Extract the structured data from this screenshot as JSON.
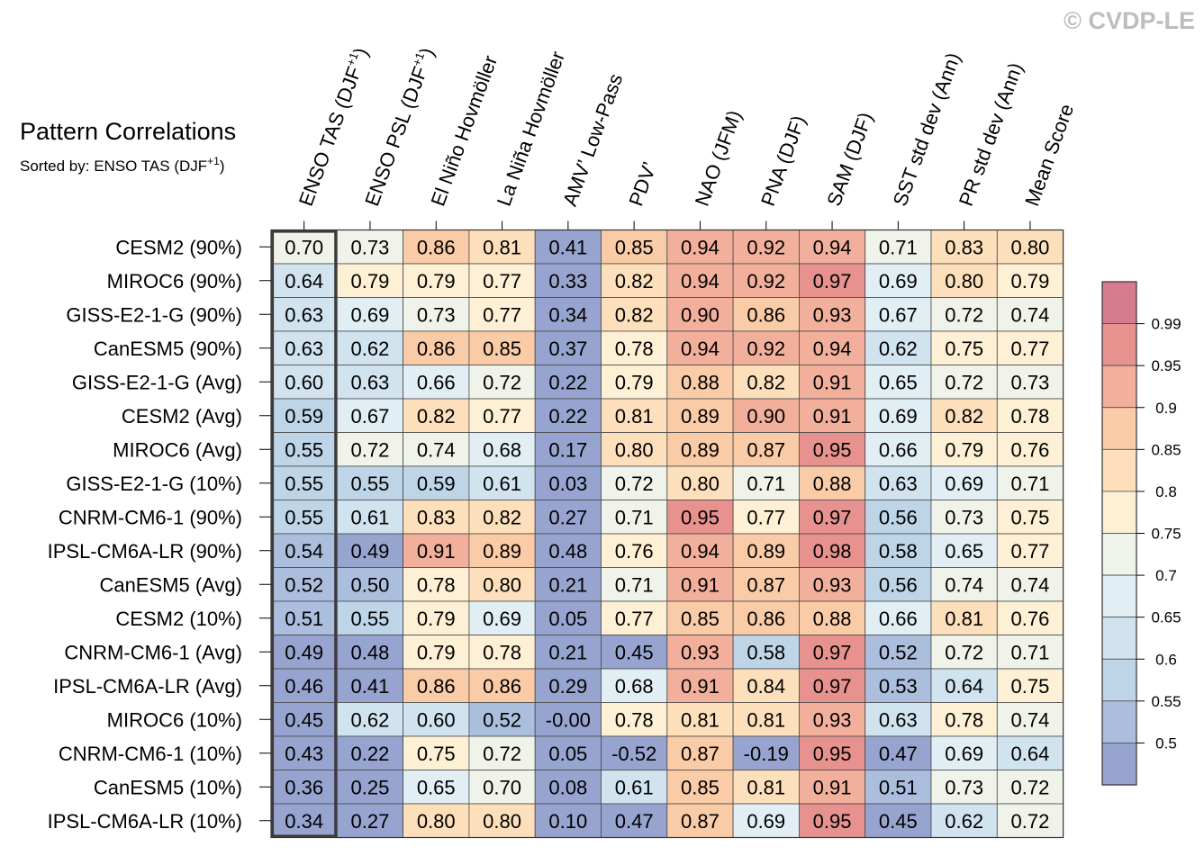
{
  "watermark": "© CVDP-LE",
  "chart_data": {
    "type": "heatmap",
    "title": "Pattern Correlations",
    "subtitle": "Sorted by: ENSO TAS (DJF",
    "subtitle_sup": "+1",
    "subtitle_end": ")",
    "highlighted_column": 0,
    "columns": [
      {
        "label": "ENSO TAS (DJF",
        "sup": "+1",
        "tail": ")"
      },
      {
        "label": "ENSO PSL (DJF",
        "sup": "+1",
        "tail": ")"
      },
      {
        "label": "El Niño Hovmöller",
        "sup": "",
        "tail": ""
      },
      {
        "label": "La Niña Hovmöller",
        "sup": "",
        "tail": ""
      },
      {
        "label": "AMV’ Low-Pass",
        "sup": "",
        "tail": ""
      },
      {
        "label": "PDV’",
        "sup": "",
        "tail": ""
      },
      {
        "label": "NAO (JFM)",
        "sup": "",
        "tail": ""
      },
      {
        "label": "PNA (DJF)",
        "sup": "",
        "tail": ""
      },
      {
        "label": "SAM (DJF)",
        "sup": "",
        "tail": ""
      },
      {
        "label": "SST std dev (Ann)",
        "sup": "",
        "tail": ""
      },
      {
        "label": "PR std dev (Ann)",
        "sup": "",
        "tail": ""
      },
      {
        "label": "Mean Score",
        "sup": "",
        "tail": ""
      }
    ],
    "rows": [
      "CESM2 (90%)",
      "MIROC6 (90%)",
      "GISS-E2-1-G (90%)",
      "CanESM5 (90%)",
      "GISS-E2-1-G (Avg)",
      "CESM2 (Avg)",
      "MIROC6 (Avg)",
      "GISS-E2-1-G (10%)",
      "CNRM-CM6-1 (90%)",
      "IPSL-CM6A-LR (90%)",
      "CanESM5 (Avg)",
      "CESM2 (10%)",
      "CNRM-CM6-1 (Avg)",
      "IPSL-CM6A-LR (Avg)",
      "MIROC6 (10%)",
      "CNRM-CM6-1 (10%)",
      "CanESM5 (10%)",
      "IPSL-CM6A-LR (10%)"
    ],
    "values": [
      [
        "0.70",
        "0.73",
        "0.86",
        "0.81",
        "0.41",
        "0.85",
        "0.94",
        "0.92",
        "0.94",
        "0.71",
        "0.83",
        "0.80"
      ],
      [
        "0.64",
        "0.79",
        "0.79",
        "0.77",
        "0.33",
        "0.82",
        "0.94",
        "0.92",
        "0.97",
        "0.69",
        "0.80",
        "0.79"
      ],
      [
        "0.63",
        "0.69",
        "0.73",
        "0.77",
        "0.34",
        "0.82",
        "0.90",
        "0.86",
        "0.93",
        "0.67",
        "0.72",
        "0.74"
      ],
      [
        "0.63",
        "0.62",
        "0.86",
        "0.85",
        "0.37",
        "0.78",
        "0.94",
        "0.92",
        "0.94",
        "0.62",
        "0.75",
        "0.77"
      ],
      [
        "0.60",
        "0.63",
        "0.66",
        "0.72",
        "0.22",
        "0.79",
        "0.88",
        "0.82",
        "0.91",
        "0.65",
        "0.72",
        "0.73"
      ],
      [
        "0.59",
        "0.67",
        "0.82",
        "0.77",
        "0.22",
        "0.81",
        "0.89",
        "0.90",
        "0.91",
        "0.69",
        "0.82",
        "0.78"
      ],
      [
        "0.55",
        "0.72",
        "0.74",
        "0.68",
        "0.17",
        "0.80",
        "0.89",
        "0.87",
        "0.95",
        "0.66",
        "0.79",
        "0.76"
      ],
      [
        "0.55",
        "0.55",
        "0.59",
        "0.61",
        "0.03",
        "0.72",
        "0.80",
        "0.71",
        "0.88",
        "0.63",
        "0.69",
        "0.71"
      ],
      [
        "0.55",
        "0.61",
        "0.83",
        "0.82",
        "0.27",
        "0.71",
        "0.95",
        "0.77",
        "0.97",
        "0.56",
        "0.73",
        "0.75"
      ],
      [
        "0.54",
        "0.49",
        "0.91",
        "0.89",
        "0.48",
        "0.76",
        "0.94",
        "0.89",
        "0.98",
        "0.58",
        "0.65",
        "0.77"
      ],
      [
        "0.52",
        "0.50",
        "0.78",
        "0.80",
        "0.21",
        "0.71",
        "0.91",
        "0.87",
        "0.93",
        "0.56",
        "0.74",
        "0.74"
      ],
      [
        "0.51",
        "0.55",
        "0.79",
        "0.69",
        "0.05",
        "0.77",
        "0.85",
        "0.86",
        "0.88",
        "0.66",
        "0.81",
        "0.76"
      ],
      [
        "0.49",
        "0.48",
        "0.79",
        "0.78",
        "0.21",
        "0.45",
        "0.93",
        "0.58",
        "0.97",
        "0.52",
        "0.72",
        "0.71"
      ],
      [
        "0.46",
        "0.41",
        "0.86",
        "0.86",
        "0.29",
        "0.68",
        "0.91",
        "0.84",
        "0.97",
        "0.53",
        "0.64",
        "0.75"
      ],
      [
        "0.45",
        "0.62",
        "0.60",
        "0.52",
        "-0.00",
        "0.78",
        "0.81",
        "0.81",
        "0.93",
        "0.63",
        "0.78",
        "0.74"
      ],
      [
        "0.43",
        "0.22",
        "0.75",
        "0.72",
        "0.05",
        "-0.52",
        "0.87",
        "-0.19",
        "0.95",
        "0.47",
        "0.69",
        "0.64"
      ],
      [
        "0.36",
        "0.25",
        "0.65",
        "0.70",
        "0.08",
        "0.61",
        "0.85",
        "0.81",
        "0.91",
        "0.51",
        "0.73",
        "0.72"
      ],
      [
        "0.34",
        "0.27",
        "0.80",
        "0.80",
        "0.10",
        "0.47",
        "0.87",
        "0.69",
        "0.95",
        "0.45",
        "0.62",
        "0.72"
      ]
    ],
    "colorbar": {
      "levels": [
        "0.5",
        "0.55",
        "0.6",
        "0.65",
        "0.7",
        "0.75",
        "0.8",
        "0.85",
        "0.9",
        "0.95",
        "0.99"
      ],
      "colors": [
        "#97a4cf",
        "#acbede",
        "#bed5e8",
        "#d0e3ef",
        "#e1eef4",
        "#f0f3ea",
        "#fdf0d4",
        "#fde0bb",
        "#f9cba6",
        "#f2b09c",
        "#e7928f",
        "#d57b8f"
      ]
    }
  }
}
